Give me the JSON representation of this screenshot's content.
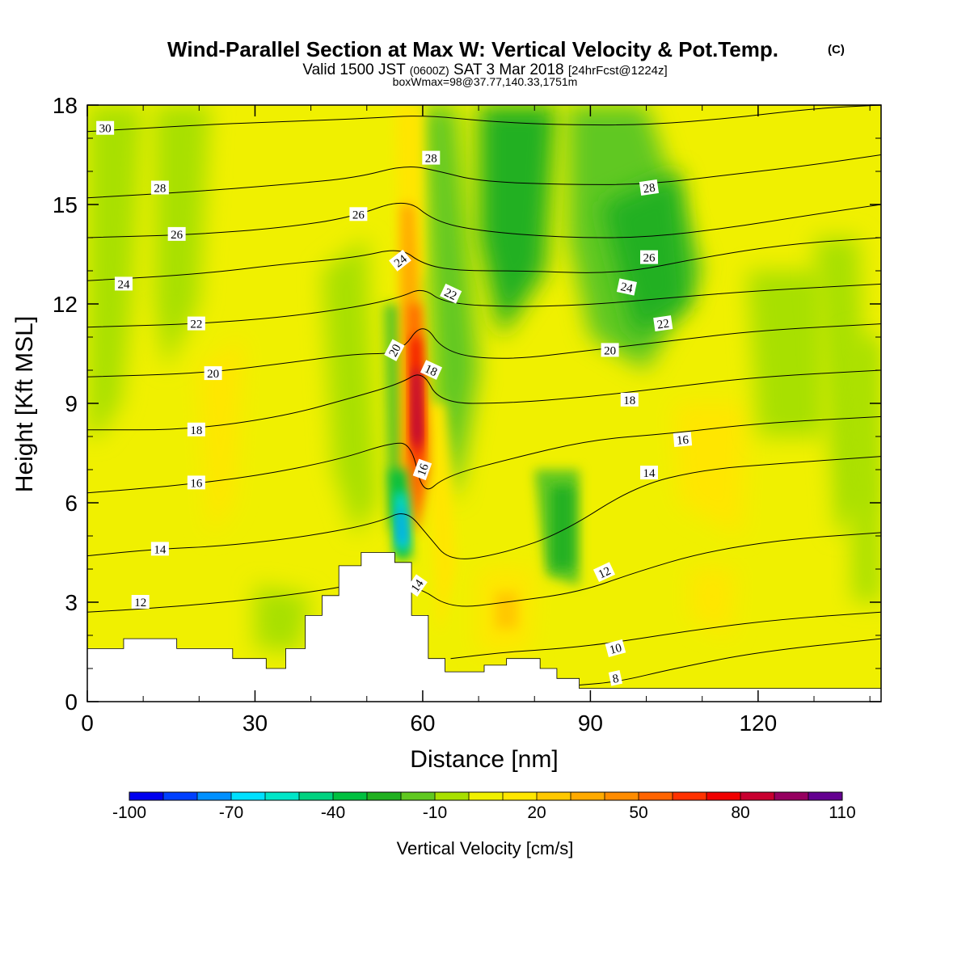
{
  "titles": {
    "main": "Wind-Parallel Section at Max W: Vertical Velocity & Pot.Temp.",
    "main_mark": "(C)",
    "valid_a": "Valid 1500 JST",
    "valid_b": "(0600Z)",
    "valid_c": "SAT 3 Mar 2018",
    "valid_d": "[24hrFcst@1224z]",
    "box": "boxWmax=98@37.77,140.33,1751m"
  },
  "chart_data": {
    "type": "heatmap",
    "title": "Wind-Parallel Section at Max W: Vertical Velocity & Pot.Temp.",
    "xlabel": "Distance [nm]",
    "ylabel": "Height [Kft MSL]",
    "xlim": [
      0,
      142
    ],
    "ylim": [
      0,
      18
    ],
    "x_ticks": [
      0,
      30,
      60,
      90,
      120
    ],
    "y_ticks": [
      0,
      3,
      6,
      9,
      12,
      15,
      18
    ],
    "colorbar": {
      "label": "Vertical Velocity [cm/s]",
      "levels": [
        -100,
        -90,
        -80,
        -70,
        -60,
        -50,
        -40,
        -30,
        -20,
        -10,
        0,
        10,
        20,
        30,
        40,
        50,
        60,
        70,
        80,
        90,
        100,
        110
      ],
      "tick_labels": [
        -100,
        -70,
        -40,
        -10,
        20,
        50,
        80,
        110
      ],
      "colors": [
        "#0000ee",
        "#0040ff",
        "#0090ff",
        "#00e0ff",
        "#00e6c8",
        "#00d280",
        "#00c040",
        "#20b020",
        "#60c820",
        "#a8e000",
        "#f0f000",
        "#ffe600",
        "#ffc800",
        "#ffaa00",
        "#ff8c00",
        "#ff6400",
        "#ff3200",
        "#f00000",
        "#c80030",
        "#960060",
        "#640090"
      ]
    },
    "field": "vertical velocity (filled) and potential temperature (contours)",
    "w_cores": [
      {
        "x": 59,
        "y_range": [
          5.5,
          11.5
        ],
        "w": 85
      },
      {
        "x": 56,
        "y_range": [
          4.5,
          6.5
        ],
        "w": -75
      },
      {
        "x": 66,
        "y_range": [
          9,
          18
        ],
        "w": -30
      },
      {
        "x": 85,
        "y_range": [
          4,
          7
        ],
        "w": -25
      },
      {
        "x": 75,
        "y_range": [
          2,
          3.5
        ],
        "w": 25
      }
    ],
    "terrain": [
      [
        0,
        1.6
      ],
      [
        6.5,
        1.6
      ],
      [
        6.5,
        1.9
      ],
      [
        16,
        1.9
      ],
      [
        16,
        1.6
      ],
      [
        26,
        1.6
      ],
      [
        26,
        1.3
      ],
      [
        32,
        1.3
      ],
      [
        32,
        1.0
      ],
      [
        35.5,
        1.0
      ],
      [
        35.5,
        1.6
      ],
      [
        39,
        1.6
      ],
      [
        39,
        2.6
      ],
      [
        42,
        2.6
      ],
      [
        42,
        3.2
      ],
      [
        45,
        3.2
      ],
      [
        45,
        4.1
      ],
      [
        49,
        4.1
      ],
      [
        49,
        4.5
      ],
      [
        55,
        4.5
      ],
      [
        55,
        4.2
      ],
      [
        58,
        4.2
      ],
      [
        58,
        2.6
      ],
      [
        61,
        2.6
      ],
      [
        61,
        1.3
      ],
      [
        64,
        1.3
      ],
      [
        64,
        0.9
      ],
      [
        71,
        0.9
      ],
      [
        71,
        1.1
      ],
      [
        75,
        1.1
      ],
      [
        75,
        1.3
      ],
      [
        81,
        1.3
      ],
      [
        81,
        1.0
      ],
      [
        84,
        1.0
      ],
      [
        84,
        0.7
      ],
      [
        88,
        0.7
      ],
      [
        88,
        0.4
      ],
      [
        142,
        0.4
      ]
    ],
    "theta_contours": [
      {
        "label": "8",
        "points": [
          [
            88,
            0.5
          ],
          [
            95,
            0.6
          ],
          [
            105,
            1.0
          ],
          [
            120,
            1.5
          ],
          [
            142,
            1.9
          ]
        ]
      },
      {
        "label": "10",
        "points": [
          [
            65,
            1.3
          ],
          [
            75,
            1.5
          ],
          [
            85,
            1.6
          ],
          [
            95,
            1.8
          ],
          [
            110,
            2.2
          ],
          [
            125,
            2.5
          ],
          [
            142,
            2.7
          ]
        ]
      },
      {
        "label": "12",
        "points": [
          [
            0,
            2.7
          ],
          [
            10,
            2.8
          ],
          [
            25,
            3.0
          ],
          [
            40,
            3.3
          ],
          [
            50,
            3.6
          ],
          [
            59,
            3.5
          ],
          [
            65,
            2.8
          ],
          [
            75,
            3.0
          ],
          [
            88,
            3.3
          ],
          [
            98,
            3.9
          ],
          [
            110,
            4.5
          ],
          [
            125,
            4.9
          ],
          [
            142,
            5.1
          ]
        ]
      },
      {
        "label": "14",
        "points": [
          [
            0,
            4.4
          ],
          [
            12,
            4.6
          ],
          [
            25,
            4.7
          ],
          [
            40,
            5.0
          ],
          [
            52,
            5.4
          ],
          [
            57,
            5.8
          ],
          [
            61,
            5.0
          ],
          [
            65,
            4.2
          ],
          [
            75,
            4.5
          ],
          [
            85,
            5.1
          ],
          [
            98,
            6.5
          ],
          [
            110,
            7.0
          ],
          [
            125,
            7.2
          ],
          [
            142,
            7.4
          ]
        ]
      },
      {
        "label": "16",
        "points": [
          [
            0,
            6.3
          ],
          [
            15,
            6.5
          ],
          [
            30,
            6.8
          ],
          [
            45,
            7.3
          ],
          [
            54,
            7.8
          ],
          [
            58,
            7.8
          ],
          [
            60,
            6.2
          ],
          [
            64,
            6.8
          ],
          [
            75,
            7.3
          ],
          [
            90,
            7.9
          ],
          [
            105,
            8.1
          ],
          [
            120,
            8.4
          ],
          [
            142,
            8.6
          ]
        ]
      },
      {
        "label": "18",
        "points": [
          [
            0,
            8.2
          ],
          [
            18,
            8.2
          ],
          [
            35,
            8.6
          ],
          [
            48,
            9.2
          ],
          [
            56,
            9.6
          ],
          [
            60,
            10.0
          ],
          [
            63,
            9.0
          ],
          [
            75,
            9.0
          ],
          [
            90,
            9.2
          ],
          [
            105,
            9.5
          ],
          [
            120,
            9.8
          ],
          [
            142,
            10.0
          ]
        ]
      },
      {
        "label": "20",
        "points": [
          [
            0,
            9.8
          ],
          [
            20,
            9.9
          ],
          [
            35,
            10.2
          ],
          [
            48,
            10.5
          ],
          [
            56,
            10.5
          ],
          [
            60,
            11.5
          ],
          [
            64,
            10.5
          ],
          [
            75,
            10.3
          ],
          [
            90,
            10.6
          ],
          [
            105,
            10.9
          ],
          [
            120,
            11.2
          ],
          [
            142,
            11.4
          ]
        ]
      },
      {
        "label": "22",
        "points": [
          [
            0,
            11.3
          ],
          [
            20,
            11.4
          ],
          [
            35,
            11.6
          ],
          [
            48,
            11.9
          ],
          [
            56,
            12.2
          ],
          [
            60,
            12.5
          ],
          [
            64,
            12.0
          ],
          [
            78,
            11.9
          ],
          [
            92,
            12.0
          ],
          [
            105,
            12.2
          ],
          [
            120,
            12.4
          ],
          [
            142,
            12.6
          ]
        ]
      },
      {
        "label": "24",
        "points": [
          [
            0,
            12.7
          ],
          [
            20,
            12.9
          ],
          [
            35,
            13.2
          ],
          [
            48,
            13.4
          ],
          [
            56,
            13.7
          ],
          [
            60,
            13.2
          ],
          [
            66,
            13.0
          ],
          [
            78,
            13.0
          ],
          [
            95,
            12.9
          ],
          [
            110,
            13.4
          ],
          [
            125,
            13.8
          ],
          [
            142,
            14.0
          ]
        ]
      },
      {
        "label": "26",
        "points": [
          [
            0,
            14.0
          ],
          [
            20,
            14.1
          ],
          [
            35,
            14.3
          ],
          [
            47,
            14.6
          ],
          [
            57,
            15.2
          ],
          [
            62,
            14.5
          ],
          [
            70,
            14.2
          ],
          [
            85,
            14.0
          ],
          [
            100,
            14.0
          ],
          [
            115,
            14.3
          ],
          [
            130,
            14.7
          ],
          [
            142,
            15.0
          ]
        ]
      },
      {
        "label": "28",
        "points": [
          [
            0,
            15.2
          ],
          [
            20,
            15.4
          ],
          [
            35,
            15.6
          ],
          [
            48,
            15.8
          ],
          [
            57,
            16.2
          ],
          [
            63,
            16.0
          ],
          [
            70,
            15.7
          ],
          [
            85,
            15.6
          ],
          [
            100,
            15.6
          ],
          [
            115,
            15.9
          ],
          [
            130,
            16.2
          ],
          [
            142,
            16.5
          ]
        ]
      },
      {
        "label": "30",
        "points": [
          [
            0,
            17.2
          ],
          [
            20,
            17.4
          ],
          [
            35,
            17.5
          ],
          [
            50,
            17.6
          ],
          [
            60,
            17.7
          ],
          [
            72,
            17.5
          ],
          [
            85,
            17.4
          ],
          [
            100,
            17.4
          ],
          [
            115,
            17.6
          ],
          [
            130,
            17.9
          ],
          [
            142,
            18.0
          ]
        ]
      }
    ],
    "contour_labels": [
      {
        "text": "30",
        "x": 3.2,
        "y": 17.3,
        "angle": 0
      },
      {
        "text": "28",
        "x": 13,
        "y": 15.5,
        "angle": 0
      },
      {
        "text": "28",
        "x": 61.5,
        "y": 16.4,
        "angle": 0
      },
      {
        "text": "28",
        "x": 100.5,
        "y": 15.5,
        "angle": -8
      },
      {
        "text": "26",
        "x": 16,
        "y": 14.1,
        "angle": 0
      },
      {
        "text": "26",
        "x": 48.5,
        "y": 14.7,
        "angle": 0
      },
      {
        "text": "26",
        "x": 100.5,
        "y": 13.4,
        "angle": 0
      },
      {
        "text": "24",
        "x": 6.5,
        "y": 12.6,
        "angle": 0
      },
      {
        "text": "24",
        "x": 56,
        "y": 13.3,
        "angle": -38
      },
      {
        "text": "24",
        "x": 96.5,
        "y": 12.5,
        "angle": 12
      },
      {
        "text": "22",
        "x": 19.5,
        "y": 11.4,
        "angle": 0
      },
      {
        "text": "22",
        "x": 65,
        "y": 12.3,
        "angle": 25
      },
      {
        "text": "22",
        "x": 103,
        "y": 11.4,
        "angle": -8
      },
      {
        "text": "20",
        "x": 22.5,
        "y": 9.9,
        "angle": 0
      },
      {
        "text": "20",
        "x": 55,
        "y": 10.6,
        "angle": -62
      },
      {
        "text": "20",
        "x": 93.5,
        "y": 10.6,
        "angle": 0
      },
      {
        "text": "18",
        "x": 19.5,
        "y": 8.2,
        "angle": 0
      },
      {
        "text": "18",
        "x": 61.5,
        "y": 10.0,
        "angle": 25
      },
      {
        "text": "18",
        "x": 97,
        "y": 9.1,
        "angle": 0
      },
      {
        "text": "16",
        "x": 19.5,
        "y": 6.6,
        "angle": 0
      },
      {
        "text": "16",
        "x": 60,
        "y": 7.0,
        "angle": -70
      },
      {
        "text": "16",
        "x": 106.5,
        "y": 7.9,
        "angle": -5
      },
      {
        "text": "14",
        "x": 13,
        "y": 4.6,
        "angle": 0
      },
      {
        "text": "14",
        "x": 59,
        "y": 3.5,
        "angle": -55
      },
      {
        "text": "14",
        "x": 100.5,
        "y": 6.9,
        "angle": 0
      },
      {
        "text": "12",
        "x": 9.5,
        "y": 3.0,
        "angle": 0
      },
      {
        "text": "12",
        "x": 92.5,
        "y": 3.9,
        "angle": -25
      },
      {
        "text": "10",
        "x": 94.5,
        "y": 1.6,
        "angle": -15
      },
      {
        "text": "8",
        "x": 94.5,
        "y": 0.7,
        "angle": -12
      }
    ]
  }
}
